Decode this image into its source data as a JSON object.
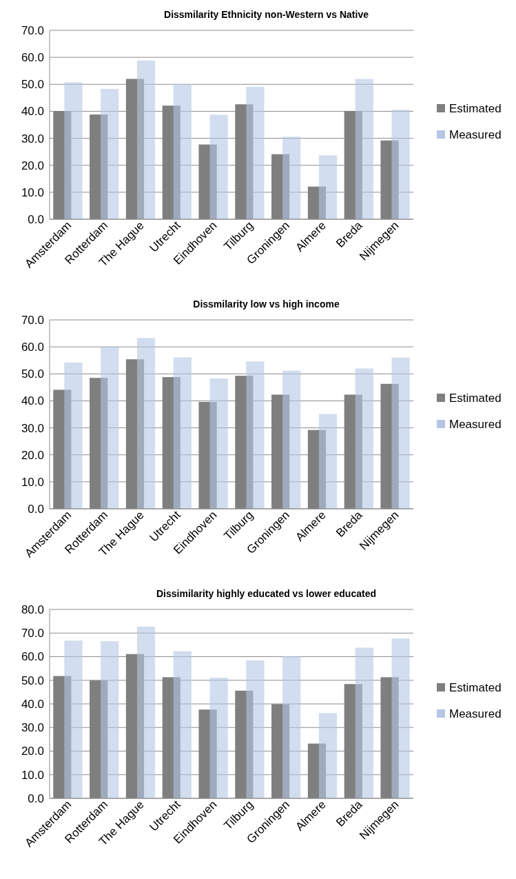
{
  "chart_data": [
    {
      "type": "bar",
      "title": "Dissmilarity Ethnicity non-Western vs Native",
      "categories": [
        "Amsterdam",
        "Rotterdam",
        "The Hague",
        "Utrecht",
        "Eindhoven",
        "Tilburg",
        "Groningen",
        "Almere",
        "Breda",
        "Nijmegen"
      ],
      "series": [
        {
          "name": "Estimated",
          "color": "#7f7f7f",
          "values": [
            40.1,
            38.8,
            52.0,
            42.1,
            27.7,
            42.6,
            24.1,
            12.1,
            40.1,
            29.2
          ]
        },
        {
          "name": "Measured",
          "color": "#b4c6e4",
          "values": [
            50.7,
            48.3,
            58.8,
            50.1,
            38.7,
            49.1,
            30.6,
            23.7,
            52.0,
            40.6
          ]
        }
      ],
      "ylim": [
        0,
        70
      ],
      "yticks": [
        {
          "value": 0,
          "label": "0.0"
        },
        {
          "value": 10,
          "label": "10.0"
        },
        {
          "value": 20,
          "label": "20.0"
        },
        {
          "value": 30,
          "label": "30.0"
        },
        {
          "value": 40,
          "label": "40.0"
        },
        {
          "value": 50,
          "label": "50.0"
        },
        {
          "value": 60,
          "label": "60.0"
        },
        {
          "value": 70,
          "label": "70.0"
        }
      ],
      "grid": "y",
      "legend": "right"
    },
    {
      "type": "bar",
      "title": "Dissmilarity low vs high income",
      "categories": [
        "Amsterdam",
        "Rotterdam",
        "The Hague",
        "Utrecht",
        "Eindhoven",
        "Tilburg",
        "Groningen",
        "Almere",
        "Breda",
        "Nijmegen"
      ],
      "series": [
        {
          "name": "Estimated",
          "color": "#7f7f7f",
          "values": [
            44.1,
            48.5,
            55.4,
            48.8,
            39.6,
            49.3,
            42.3,
            29.2,
            42.3,
            46.3
          ]
        },
        {
          "name": "Measured",
          "color": "#b4c6e4",
          "values": [
            54.2,
            60.0,
            63.3,
            56.1,
            48.3,
            54.6,
            51.2,
            35.1,
            52.0,
            56.0
          ]
        }
      ],
      "ylim": [
        0,
        70
      ],
      "yticks": [
        {
          "value": 0,
          "label": "0.0"
        },
        {
          "value": 10,
          "label": "10.0"
        },
        {
          "value": 20,
          "label": "20.0"
        },
        {
          "value": 30,
          "label": "30.0"
        },
        {
          "value": 40,
          "label": "40.0"
        },
        {
          "value": 50,
          "label": "50.0"
        },
        {
          "value": 60,
          "label": "60.0"
        },
        {
          "value": 70,
          "label": "70.0"
        }
      ],
      "grid": "y",
      "legend": "right"
    },
    {
      "type": "bar",
      "title": "Dissimilarity highly educated vs lower educated",
      "categories": [
        "Amsterdam",
        "Rotterdam",
        "The Hague",
        "Utrecht",
        "Eindhoven",
        "Tilburg",
        "Groningen",
        "Almere",
        "Breda",
        "Nijmegen"
      ],
      "series": [
        {
          "name": "Estimated",
          "color": "#7f7f7f",
          "values": [
            51.8,
            49.9,
            61.1,
            51.3,
            37.6,
            45.6,
            39.9,
            23.2,
            48.4,
            51.3
          ]
        },
        {
          "name": "Measured",
          "color": "#b4c6e4",
          "values": [
            66.8,
            66.6,
            72.7,
            62.3,
            51.1,
            58.4,
            60.2,
            36.1,
            63.8,
            67.7
          ]
        }
      ],
      "ylim": [
        0,
        80
      ],
      "yticks": [
        {
          "value": 0,
          "label": "0.0"
        },
        {
          "value": 10,
          "label": "10.0"
        },
        {
          "value": 20,
          "label": "20.0"
        },
        {
          "value": 30,
          "label": "30.0"
        },
        {
          "value": 40,
          "label": "40.0"
        },
        {
          "value": 50,
          "label": "50.0"
        },
        {
          "value": 60,
          "label": "60.0"
        },
        {
          "value": 70,
          "label": "70.0"
        },
        {
          "value": 80,
          "label": "80.0"
        }
      ],
      "grid": "y",
      "legend": "right"
    }
  ]
}
